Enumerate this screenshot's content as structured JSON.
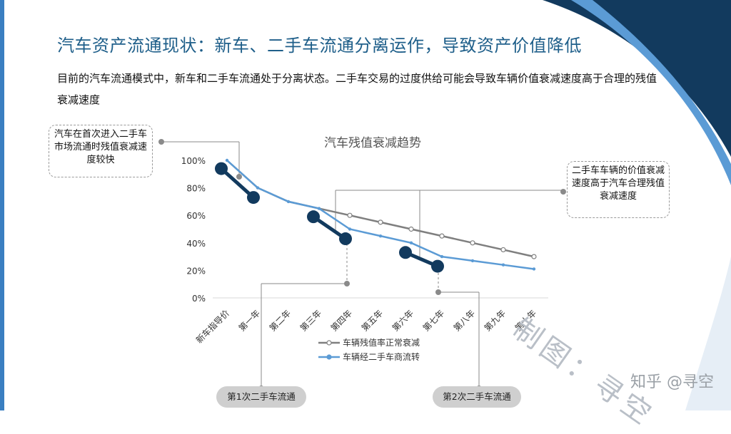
{
  "header": {
    "title": "汽车资产流通现状：新车、二手车流通分离运作，导致资产价值降低",
    "subtitle": "目前的汽车流通模式中，新车和二手车流通处于分离状态。二手车交易的过度供给可能会导致车辆价值衰减速度高于合理的残值衰减速度"
  },
  "callouts": {
    "left": "汽车在首次进入二手车市场流通时残值衰减速度较快",
    "right": "二手车车辆的价值衰减速度高于汽车合理残值衰减速度",
    "first_circulation": "第1次二手车流通",
    "second_circulation": "第2次二手车流通"
  },
  "watermark": {
    "stamp": "制图：寻空",
    "credit": "知乎 @寻空"
  },
  "colors": {
    "normal": "#7f7f7f",
    "circulation": "#5b9bd5",
    "highlight": "#123a5e",
    "title": "#1f5f8a"
  },
  "chart_data": {
    "type": "line",
    "title": "汽车残值衰减趋势",
    "categories": [
      "新车指导价",
      "第一年",
      "第二年",
      "第三年",
      "第四年",
      "第五年",
      "第六年",
      "第七年",
      "第八年",
      "第九年",
      "第十年"
    ],
    "ylim": [
      0,
      100
    ],
    "yticks": [
      "0%",
      "20%",
      "40%",
      "60%",
      "80%",
      "100%"
    ],
    "legend_position": "bottom",
    "series": [
      {
        "name": "车辆残值率正常衰减",
        "values": [
          100,
          80,
          70,
          65,
          60,
          55,
          50,
          45,
          40,
          35,
          30
        ]
      },
      {
        "name": "车辆经二手车商流转",
        "values": [
          100,
          80,
          70,
          65,
          50,
          45,
          40,
          30,
          27,
          24,
          21
        ]
      }
    ],
    "highlights": [
      {
        "from": 0,
        "to": 1,
        "values": [
          94,
          73
        ]
      },
      {
        "from": 3,
        "to": 4,
        "values": [
          59,
          43
        ]
      },
      {
        "from": 6,
        "to": 7,
        "values": [
          33,
          23
        ]
      }
    ]
  }
}
